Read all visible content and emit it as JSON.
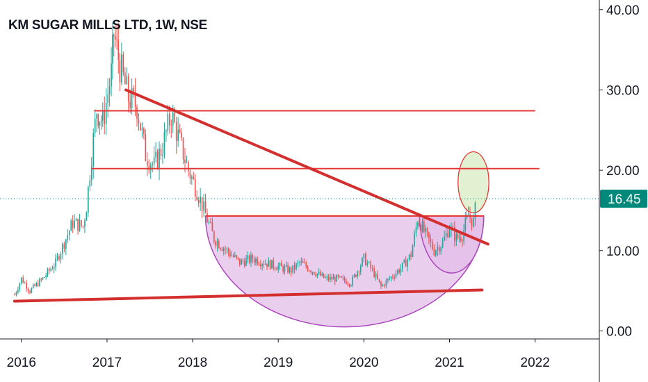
{
  "title": "KM SUGAR MILLS LTD, 1W, NSE",
  "colors": {
    "up": "#26a69a",
    "down": "#ef5350",
    "trendline": "#d32f2f",
    "hline": "#e53935",
    "cup_fill": "#e1bee7",
    "cup_stroke": "#ab47bc",
    "ellipse_fill": "#dcedc8",
    "ellipse_stroke": "#e53935",
    "price_line": "#00897b",
    "price_label_bg": "#00897b"
  },
  "chart_data": {
    "type": "candlestick",
    "title": "KM SUGAR MILLS LTD, 1W, NSE",
    "x_ticks": [
      "2016",
      "2017",
      "2018",
      "2019",
      "2020",
      "2021",
      "2022"
    ],
    "y_ticks": [
      "0.00",
      "10.00",
      "20.00",
      "30.00",
      "40.00"
    ],
    "xlim": [
      2015.75,
      2022.75
    ],
    "ylim": [
      -1,
      40.5
    ],
    "last_price": 16.45,
    "last_price_label": "16.45",
    "grid": false,
    "series": [
      {
        "x": 2015.92,
        "y": 4.5
      },
      {
        "x": 2016.0,
        "y": 6.5
      },
      {
        "x": 2016.1,
        "y": 5.0
      },
      {
        "x": 2016.25,
        "y": 6.5
      },
      {
        "x": 2016.4,
        "y": 8.5
      },
      {
        "x": 2016.5,
        "y": 11.0
      },
      {
        "x": 2016.6,
        "y": 13.5
      },
      {
        "x": 2016.72,
        "y": 13.0
      },
      {
        "x": 2016.76,
        "y": 15.5
      },
      {
        "x": 2016.82,
        "y": 22.0
      },
      {
        "x": 2016.88,
        "y": 27.5
      },
      {
        "x": 2016.95,
        "y": 26.0
      },
      {
        "x": 2017.05,
        "y": 32.0
      },
      {
        "x": 2017.08,
        "y": 37.0
      },
      {
        "x": 2017.15,
        "y": 33.0
      },
      {
        "x": 2017.25,
        "y": 29.0
      },
      {
        "x": 2017.35,
        "y": 28.0
      },
      {
        "x": 2017.45,
        "y": 22.0
      },
      {
        "x": 2017.55,
        "y": 20.5
      },
      {
        "x": 2017.65,
        "y": 23.0
      },
      {
        "x": 2017.75,
        "y": 27.0
      },
      {
        "x": 2017.85,
        "y": 23.5
      },
      {
        "x": 2017.95,
        "y": 20.0
      },
      {
        "x": 2018.05,
        "y": 17.5
      },
      {
        "x": 2018.15,
        "y": 14.5
      },
      {
        "x": 2018.25,
        "y": 11.5
      },
      {
        "x": 2018.4,
        "y": 10.0
      },
      {
        "x": 2018.55,
        "y": 8.5
      },
      {
        "x": 2018.7,
        "y": 9.0
      },
      {
        "x": 2018.85,
        "y": 8.5
      },
      {
        "x": 2019.0,
        "y": 8.0
      },
      {
        "x": 2019.15,
        "y": 7.5
      },
      {
        "x": 2019.25,
        "y": 8.5
      },
      {
        "x": 2019.4,
        "y": 7.5
      },
      {
        "x": 2019.55,
        "y": 6.5
      },
      {
        "x": 2019.7,
        "y": 6.5
      },
      {
        "x": 2019.85,
        "y": 6.0
      },
      {
        "x": 2020.0,
        "y": 9.0
      },
      {
        "x": 2020.1,
        "y": 7.5
      },
      {
        "x": 2020.2,
        "y": 5.5
      },
      {
        "x": 2020.3,
        "y": 6.5
      },
      {
        "x": 2020.45,
        "y": 8.0
      },
      {
        "x": 2020.55,
        "y": 9.5
      },
      {
        "x": 2020.63,
        "y": 14.0
      },
      {
        "x": 2020.72,
        "y": 12.0
      },
      {
        "x": 2020.82,
        "y": 10.0
      },
      {
        "x": 2020.92,
        "y": 11.0
      },
      {
        "x": 2021.0,
        "y": 13.0
      },
      {
        "x": 2021.08,
        "y": 11.5
      },
      {
        "x": 2021.15,
        "y": 12.0
      },
      {
        "x": 2021.22,
        "y": 14.5
      },
      {
        "x": 2021.28,
        "y": 13.5
      },
      {
        "x": 2021.32,
        "y": 16.45
      }
    ],
    "annotations": {
      "trendlines": [
        {
          "from": [
            2017.22,
            30.0
          ],
          "to": [
            2021.45,
            10.8
          ]
        },
        {
          "from": [
            2015.92,
            3.7
          ],
          "to": [
            2021.38,
            5.1
          ]
        }
      ],
      "hlines": [
        {
          "y": 27.4,
          "x0": 2016.85,
          "x1": 2022.0
        },
        {
          "y": 20.2,
          "x0": 2016.82,
          "x1": 2022.05
        },
        {
          "y": 14.3,
          "x0": 2018.15,
          "x1": 2021.4
        }
      ],
      "cups": [
        {
          "left": [
            2018.15,
            14.3
          ],
          "bottom": [
            2019.5,
            0.5
          ],
          "right": [
            2021.4,
            14.3
          ]
        },
        {
          "left": [
            2020.65,
            14.3
          ],
          "bottom": [
            2020.95,
            7.2
          ],
          "right": [
            2021.4,
            14.3
          ]
        }
      ],
      "ellipse": {
        "cx": 2021.28,
        "cy": 18.5,
        "rx": 0.18,
        "ry": 3.8
      }
    }
  }
}
